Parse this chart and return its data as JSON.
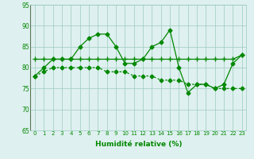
{
  "x": [
    0,
    1,
    2,
    3,
    4,
    5,
    6,
    7,
    8,
    9,
    10,
    11,
    12,
    13,
    14,
    15,
    16,
    17,
    18,
    19,
    20,
    21,
    22,
    23
  ],
  "line1": [
    78,
    80,
    82,
    82,
    82,
    85,
    87,
    88,
    88,
    85,
    81,
    81,
    82,
    85,
    86,
    89,
    80,
    74,
    76,
    76,
    75,
    76,
    81,
    83
  ],
  "line2": [
    78,
    79,
    80,
    80,
    80,
    80,
    80,
    80,
    79,
    79,
    79,
    78,
    78,
    78,
    77,
    77,
    77,
    76,
    76,
    76,
    75,
    75,
    75,
    75
  ],
  "line3": [
    82,
    82,
    82,
    82,
    82,
    82,
    82,
    82,
    82,
    82,
    82,
    82,
    82,
    82,
    82,
    82,
    82,
    82,
    82,
    82,
    82,
    82,
    82,
    83
  ],
  "ylim": [
    65,
    95
  ],
  "yticks": [
    65,
    70,
    75,
    80,
    85,
    90,
    95
  ],
  "xtick_labels": [
    "0",
    "1",
    "2",
    "3",
    "4",
    "5",
    "6",
    "7",
    "8",
    "9",
    "10",
    "11",
    "12",
    "13",
    "14",
    "15",
    "16",
    "17",
    "18",
    "19",
    "20",
    "21",
    "22",
    "23"
  ],
  "xlabel": "Humidité relative (%)",
  "line_color": "#008800",
  "bg_color": "#dff0f0",
  "grid_color": "#99ccbb",
  "marker_size": 2.5,
  "linewidth": 0.9
}
